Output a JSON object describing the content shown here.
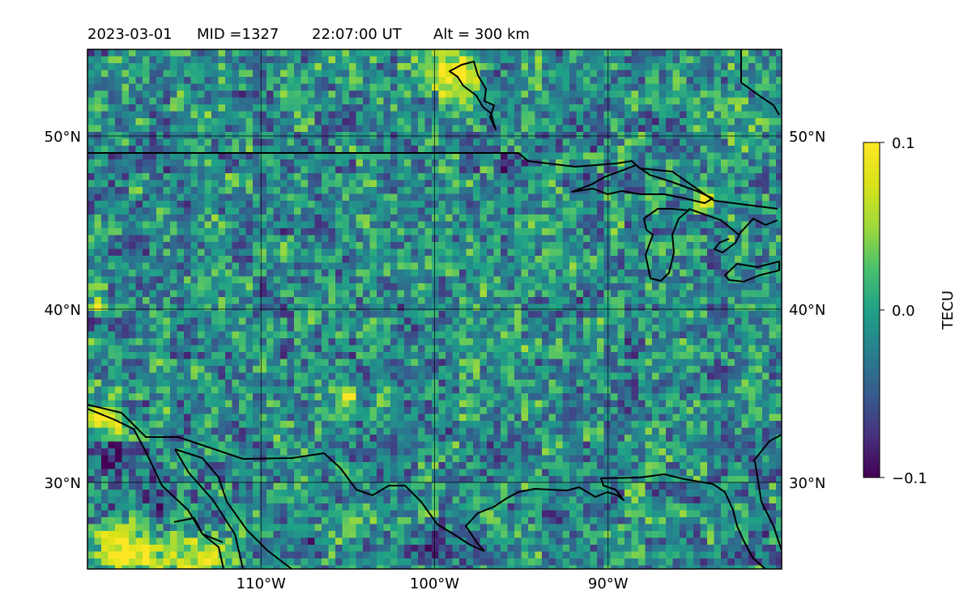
{
  "title": {
    "date": "2023-03-01",
    "mid": "MID =1327",
    "time": "22:07:00  UT",
    "alt": "Alt = 300 km"
  },
  "map": {
    "projection": "lat-lon",
    "lon_range": [
      -120,
      -80
    ],
    "lat_range": [
      25,
      55
    ],
    "grid": true,
    "field": "TEC perturbation (pixelated)"
  },
  "axes": {
    "x_ticks": [
      {
        "value": -110,
        "label": "110°W"
      },
      {
        "value": -100,
        "label": "100°W"
      },
      {
        "value": -90,
        "label": "90°W"
      }
    ],
    "y_ticks": [
      {
        "value": 50,
        "label": "50°N"
      },
      {
        "value": 40,
        "label": "40°N"
      },
      {
        "value": 30,
        "label": "30°N"
      }
    ]
  },
  "colorbar": {
    "label": "TECU",
    "min": -0.1,
    "max": 0.1,
    "colormap": "viridis",
    "ticks": [
      {
        "value": 0.1,
        "label": "0.1"
      },
      {
        "value": 0.0,
        "label": "0.0"
      },
      {
        "value": -0.1,
        "label": "−0.1"
      }
    ]
  },
  "colors": {
    "line": "#000000",
    "grid": "#000000"
  }
}
